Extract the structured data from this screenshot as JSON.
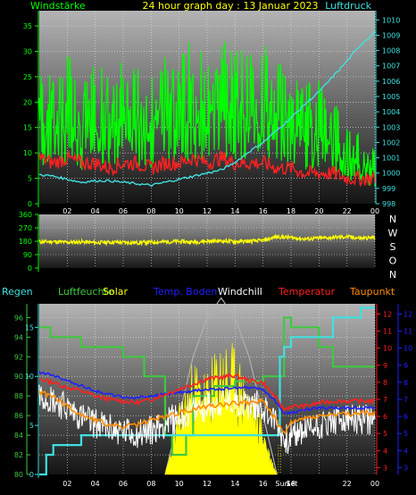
{
  "title": "24 hour graph day : 13 Januar 2023",
  "colors": {
    "wind": "#00ff00",
    "pressure": "#40e0e0",
    "gust": "#ff2020",
    "direction": "#ffff00",
    "rain": "#40e0e0",
    "humidity": "#40c840",
    "solar": "#ffff00",
    "soil": "#2020ff",
    "windchill": "#ffffff",
    "temperature": "#ff2020",
    "dewpoint": "#ff8c00",
    "axisLeft": "#00ff00",
    "axisRed": "#ff2020",
    "axisBlue": "#2020ff",
    "text": "#ffffff"
  },
  "chart_data": [
    {
      "id": "wind-pressure",
      "type": "line",
      "labels": {
        "left": "Windstärke",
        "right": "Luftdruck"
      },
      "xticks": [
        "02",
        "04",
        "06",
        "08",
        "10",
        "12",
        "14",
        "16",
        "18",
        "20",
        "22",
        "00"
      ],
      "yticksLeft": [
        0,
        5,
        10,
        15,
        20,
        25,
        30,
        35
      ],
      "yticksRight": [
        998,
        999,
        1000,
        1001,
        1002,
        1003,
        1004,
        1005,
        1006,
        1007,
        1008,
        1009,
        1010
      ],
      "xlim": [
        0,
        24
      ],
      "ylimLeft": [
        0,
        38
      ],
      "ylimRight": [
        998,
        1010.6
      ],
      "series": {
        "wind_avg": {
          "x": [
            0,
            1,
            2,
            3,
            4,
            5,
            6,
            7,
            8,
            9,
            10,
            11,
            12,
            13,
            14,
            15,
            16,
            17,
            18,
            19,
            20,
            21,
            22,
            23,
            24
          ],
          "y": [
            13,
            12,
            14,
            11,
            13,
            12,
            14,
            13,
            12,
            15,
            14,
            16,
            15,
            17,
            16,
            15,
            17,
            14,
            13,
            12,
            13,
            11,
            8,
            7,
            6
          ]
        },
        "wind_gust": {
          "x": [
            0,
            1,
            2,
            3,
            4,
            5,
            6,
            7,
            8,
            9,
            10,
            11,
            12,
            13,
            14,
            15,
            16,
            17,
            18,
            19,
            20,
            21,
            22,
            23,
            24
          ],
          "y": [
            27,
            25,
            30,
            24,
            28,
            26,
            29,
            27,
            25,
            31,
            29,
            33,
            30,
            35,
            32,
            30,
            33,
            28,
            26,
            24,
            25,
            22,
            16,
            14,
            12
          ]
        },
        "gust_min": {
          "x": [
            0,
            1,
            2,
            3,
            4,
            5,
            6,
            7,
            8,
            9,
            10,
            11,
            12,
            13,
            14,
            15,
            16,
            17,
            18,
            19,
            20,
            21,
            22,
            23,
            24
          ],
          "y": [
            9,
            8,
            9,
            8,
            8,
            7,
            8,
            8,
            7,
            8,
            8,
            9,
            8,
            9,
            8,
            8,
            8,
            7,
            7,
            6,
            6,
            6,
            5,
            5,
            5
          ]
        },
        "pressure": {
          "x": [
            0,
            1,
            2,
            3,
            4,
            5,
            6,
            7,
            8,
            9,
            10,
            11,
            12,
            13,
            14,
            15,
            16,
            17,
            18,
            19,
            20,
            21,
            22,
            23,
            24
          ],
          "y": [
            999.9,
            999.8,
            999.6,
            999.4,
            999.5,
            999.5,
            999.4,
            999.3,
            999.2,
            999.4,
            999.6,
            999.8,
            1000.0,
            1000.2,
            1000.7,
            1001.4,
            1002.0,
            1002.8,
            1003.6,
            1004.5,
            1005.3,
            1006.3,
            1007.3,
            1008.4,
            1009.2
          ]
        }
      }
    },
    {
      "id": "wind-direction",
      "type": "line",
      "yticks": [
        0,
        90,
        180,
        270,
        360
      ],
      "ylim": [
        0,
        360
      ],
      "xlim": [
        0,
        24
      ],
      "compass": [
        "N",
        "W",
        "S",
        "O",
        "N"
      ],
      "series": {
        "direction": {
          "x": [
            0,
            1,
            2,
            3,
            4,
            5,
            6,
            7,
            8,
            9,
            10,
            11,
            12,
            13,
            14,
            15,
            16,
            17,
            18,
            19,
            20,
            21,
            22,
            23,
            24
          ],
          "y": [
            175,
            178,
            172,
            176,
            170,
            174,
            172,
            170,
            174,
            176,
            178,
            175,
            180,
            182,
            178,
            180,
            185,
            210,
            205,
            195,
            200,
            205,
            210,
            200,
            205
          ]
        }
      }
    },
    {
      "id": "temperature-humidity",
      "type": "line",
      "labels": {
        "rain": "Regen",
        "humidity": "Luftfeuchte",
        "solar": "Solar",
        "soil": "Temp. Boden",
        "windchill": "Windchill",
        "temperature": "Temperatur",
        "dewpoint": "Taupunkt"
      },
      "xticks": [
        "02",
        "04",
        "06",
        "08",
        "10",
        "12",
        "14",
        "16",
        "18",
        "20",
        "22",
        "00"
      ],
      "suntimes": [
        "Sun",
        "Set"
      ],
      "yticksHumidity": [
        80,
        82,
        84,
        86,
        88,
        90,
        92,
        94,
        96
      ],
      "yticksRain": [
        0,
        5,
        10,
        15
      ],
      "yticksTemp": [
        3,
        4,
        5,
        6,
        7,
        8,
        9,
        10,
        11,
        12
      ],
      "xlim": [
        0,
        24
      ],
      "ylimHumidity": [
        80,
        97.4
      ],
      "ylimTemp": [
        2.6,
        12.6
      ],
      "series": {
        "humidity": {
          "x": [
            0,
            0.8,
            0.8,
            3,
            3,
            6,
            6,
            7.5,
            7.5,
            9,
            9,
            9.5,
            9.5,
            10.5,
            10.5,
            11,
            11,
            12.5,
            12.5,
            14,
            14,
            16,
            16,
            17.5,
            17.5,
            18,
            18,
            20,
            20,
            21,
            21,
            24
          ],
          "y": [
            95,
            95,
            94,
            94,
            93,
            93,
            92,
            92,
            90,
            90,
            84,
            84,
            82,
            82,
            84,
            84,
            88,
            88,
            89,
            89,
            89.5,
            89.5,
            90,
            90,
            96,
            96,
            95,
            95,
            93,
            93,
            91,
            91
          ]
        },
        "rain": {
          "x": [
            0,
            0.5,
            0.5,
            1,
            1,
            3,
            3,
            17.2,
            17.2,
            17.5,
            17.5,
            18,
            18,
            21,
            21,
            23,
            23,
            24
          ],
          "y": [
            0,
            0,
            2,
            2,
            3,
            3,
            4,
            4,
            12,
            12,
            13,
            13,
            14,
            14,
            16,
            16,
            17,
            17
          ]
        },
        "temperature": {
          "x": [
            0,
            1,
            2,
            3,
            4,
            5,
            6,
            7,
            8,
            9,
            10,
            11,
            12,
            13,
            14,
            15,
            16,
            17,
            17.5,
            18,
            19,
            20,
            21,
            22,
            23,
            24
          ],
          "y": [
            8.2,
            8.0,
            7.7,
            7.5,
            7.2,
            7.0,
            6.9,
            6.8,
            7.0,
            7.3,
            7.6,
            7.9,
            8.2,
            8.3,
            8.4,
            8.1,
            8.0,
            7.0,
            6.4,
            6.6,
            6.6,
            6.8,
            6.9,
            6.9,
            6.9,
            6.9
          ]
        },
        "dewpoint": {
          "x": [
            0,
            1,
            2,
            3,
            4,
            5,
            6,
            7,
            8,
            9,
            10,
            11,
            12,
            13,
            14,
            15,
            16,
            17,
            17.5,
            18,
            19,
            20,
            21,
            22,
            23,
            24
          ],
          "y": [
            7.4,
            7.2,
            6.6,
            6.1,
            5.8,
            5.5,
            5.4,
            5.5,
            5.8,
            6.0,
            6.2,
            6.4,
            6.6,
            6.7,
            6.8,
            6.8,
            6.9,
            5.7,
            5.0,
            5.6,
            5.9,
            6.0,
            6.1,
            6.1,
            6.2,
            6.2
          ]
        },
        "soil": {
          "x": [
            0,
            1,
            2,
            3,
            4,
            5,
            6,
            7,
            8,
            9,
            10,
            11,
            12,
            13,
            14,
            15,
            16,
            17,
            17.5,
            18,
            19,
            20,
            21,
            22,
            23,
            24
          ],
          "y": [
            8.6,
            8.4,
            8.1,
            7.8,
            7.5,
            7.3,
            7.1,
            7.1,
            7.2,
            7.3,
            7.4,
            7.5,
            7.6,
            7.6,
            7.7,
            7.7,
            7.6,
            6.8,
            6.2,
            6.2,
            6.4,
            6.5,
            6.5,
            6.5,
            6.5,
            6.5
          ]
        },
        "windchill": {
          "x": [
            0,
            1,
            2,
            3,
            4,
            5,
            6,
            7,
            8,
            9,
            10,
            11,
            12,
            13,
            14,
            15,
            16,
            17,
            17.5,
            18,
            19,
            20,
            21,
            22,
            23,
            24
          ],
          "y": [
            7.4,
            7.0,
            6.5,
            6.0,
            5.6,
            5.3,
            5.1,
            5.0,
            5.2,
            5.6,
            6.0,
            6.3,
            6.6,
            6.8,
            6.9,
            6.7,
            6.6,
            5.6,
            4.6,
            4.8,
            5.2,
            5.5,
            5.7,
            5.8,
            5.8,
            5.8
          ]
        },
        "solar": {
          "x": [
            9,
            10,
            11,
            12,
            13,
            14,
            15,
            16,
            16.5,
            17
          ],
          "y": [
            0,
            6,
            10,
            9,
            12,
            11,
            8,
            5,
            2,
            0
          ]
        },
        "solar_max": {
          "x": [
            9,
            10,
            11,
            12,
            13,
            14,
            15,
            16,
            17
          ],
          "y": [
            0,
            6,
            12,
            16,
            18,
            16,
            12,
            6,
            0
          ]
        }
      }
    }
  ]
}
